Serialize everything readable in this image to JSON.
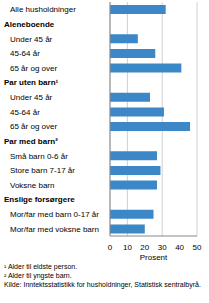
{
  "chart_data": {
    "type": "bar",
    "orientation": "horizontal",
    "categories": [
      "Alle husholdninger",
      "Aleneboende",
      "Under 45 år",
      "45-64 år",
      "65 år og over",
      "Par uten barn¹",
      "Under 45 år",
      "45-64 år",
      "65 år og over",
      "Par med barn²",
      "Små barn 0-6 år",
      "Store barn 7-17 år",
      "Voksne barn",
      "Enslige forsørgere",
      "Mor/far med barn 0-17 år",
      "Mor/far med voksne barn"
    ],
    "values": [
      32,
      null,
      16,
      26,
      41,
      null,
      23,
      31,
      46,
      null,
      27,
      29,
      27,
      null,
      25,
      20
    ],
    "color": "#3c87c7",
    "xlabel": "Prosent",
    "xlim": [
      0,
      50
    ],
    "xticks": [
      0,
      10,
      20,
      30,
      40,
      50
    ],
    "grid": true,
    "notes": [
      "¹ Alder til eldste person.",
      "² Alder til yngste barn."
    ],
    "source": "Kilde: Inntektsstatistikk for husholdninger, Statistisk sentralbyrå."
  }
}
